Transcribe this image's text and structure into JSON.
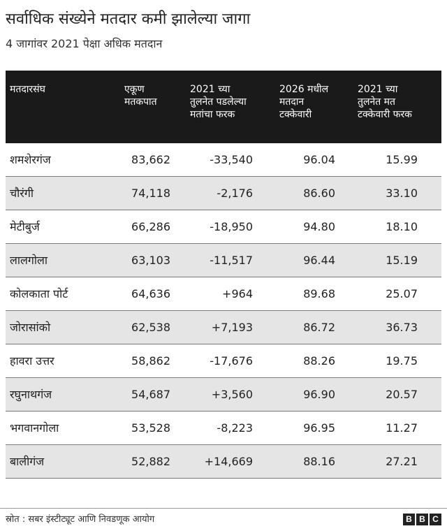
{
  "title": "सर्वाधिक संख्येने मतदार कमी झालेल्या जागा",
  "subtitle": "4 जागांवर 2021 पेक्षा अधिक मतदान",
  "source": "स्रोत : सबर इंस्टीट्यूट आणि निवडणूक आयोग",
  "logo_letters": [
    "B",
    "B",
    "C"
  ],
  "colors": {
    "header_bg": "#1a1a1a",
    "shaded_row": "#e5e5e5",
    "text": "#222222"
  },
  "chart_data": {
    "type": "table",
    "columns": [
      "मतदारसंघ",
      "एकूण\nमतकपात",
      "2021 च्या\nतुलनेत पडलेल्या\nमतांचा फरक",
      "2026 मधील\nमतदान\nटक्केवारी",
      "2021 च्या\nतुलनेत मत\nटक्केवारी फरक"
    ],
    "rows": [
      [
        "शमशेरगंज",
        "83,662",
        "-33,540",
        "96.04",
        "15.99"
      ],
      [
        "चौरंगी",
        "74,118",
        "-2,176",
        "86.60",
        "33.10"
      ],
      [
        "मेटीबुर्ज",
        "66,286",
        "-18,950",
        "94.80",
        "18.10"
      ],
      [
        "लालगोला",
        "63,103",
        "-11,517",
        "96.44",
        "15.19"
      ],
      [
        "कोलकाता पोर्ट",
        "64,636",
        "+964",
        "89.68",
        "25.07"
      ],
      [
        "जोरासांको",
        "62,538",
        "+7,193",
        "86.72",
        "36.73"
      ],
      [
        "हावरा उत्तर",
        "58,862",
        "-17,676",
        "88.26",
        "19.75"
      ],
      [
        "रघुनाथगंज",
        "54,687",
        "+3,560",
        "96.90",
        "20.57"
      ],
      [
        "भगवानगोला",
        "53,528",
        "-8,223",
        "96.95",
        "11.27"
      ],
      [
        "बालीगंज",
        "52,882",
        "+14,669",
        "88.16",
        "27.21"
      ]
    ]
  }
}
